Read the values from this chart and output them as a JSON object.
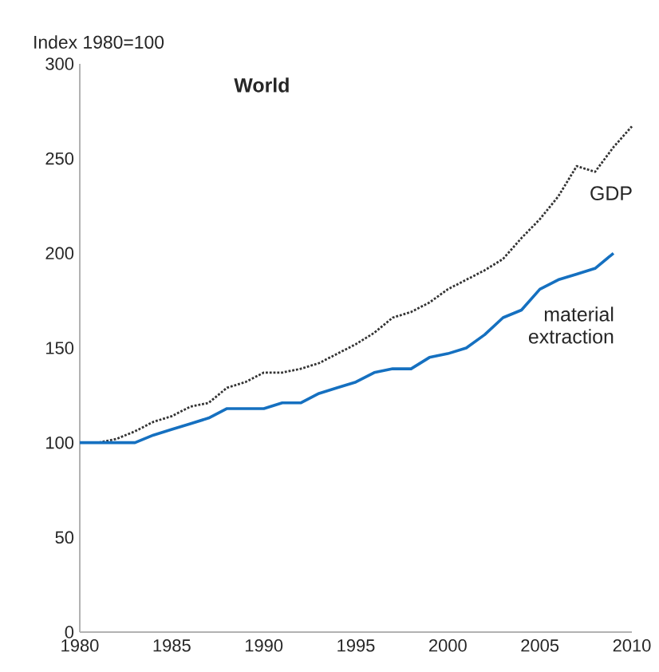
{
  "chart_data": {
    "type": "line",
    "title": "World",
    "ylabel": "Index 1980=100",
    "x": [
      1980,
      1981,
      1982,
      1983,
      1984,
      1985,
      1986,
      1987,
      1988,
      1989,
      1990,
      1991,
      1992,
      1993,
      1994,
      1995,
      1996,
      1997,
      1998,
      1999,
      2000,
      2001,
      2002,
      2003,
      2004,
      2005,
      2006,
      2007,
      2008,
      2009,
      2010
    ],
    "series": [
      {
        "name": "GDP",
        "color": "#333333",
        "line_style": "dotted",
        "values": [
          100,
          100,
          102,
          106,
          111,
          114,
          119,
          121,
          129,
          132,
          137,
          137,
          139,
          142,
          147,
          152,
          158,
          166,
          169,
          174,
          181,
          186,
          191,
          197,
          208,
          218,
          230,
          246,
          243,
          256,
          267
        ]
      },
      {
        "name": "material extraction",
        "color": "#1570c0",
        "line_style": "solid",
        "values": [
          100,
          100,
          100,
          100,
          104,
          107,
          110,
          113,
          118,
          118,
          118,
          121,
          121,
          126,
          129,
          132,
          137,
          139,
          139,
          145,
          147,
          150,
          157,
          166,
          170,
          181,
          186,
          189,
          192,
          200,
          null
        ]
      }
    ],
    "xlim": [
      1980,
      2010
    ],
    "ylim": [
      0,
      300
    ],
    "xticks": [
      1980,
      1985,
      1990,
      1995,
      2000,
      2005,
      2010
    ],
    "yticks": [
      0,
      50,
      100,
      150,
      200,
      250,
      300
    ],
    "grid": false,
    "legend": false,
    "marker": "none"
  }
}
